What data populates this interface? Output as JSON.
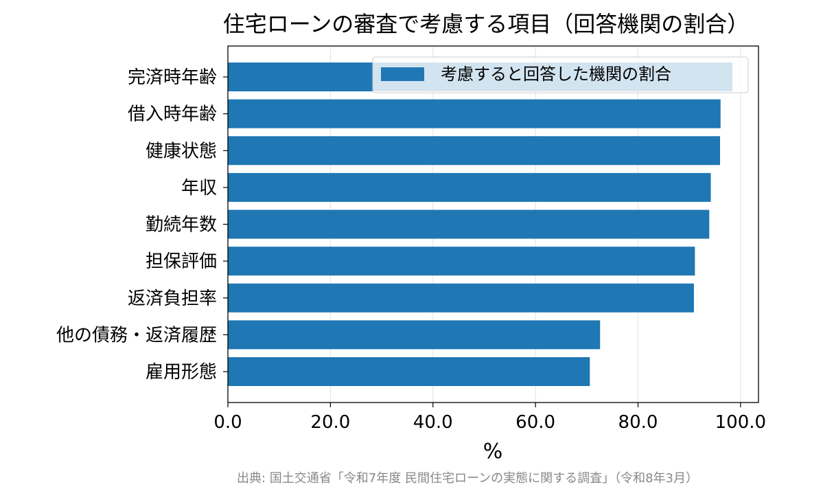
{
  "chart_data": {
    "type": "bar",
    "orientation": "horizontal",
    "title": "住宅ローンの審査で考慮する項目（回答機関の割合）",
    "xlabel": "%",
    "ylabel": "",
    "xlim": [
      0,
      103.5
    ],
    "xticks": [
      0,
      20,
      40,
      60,
      80,
      100
    ],
    "xtick_labels": [
      "0.0",
      "20.0",
      "40.0",
      "60.0",
      "80.0",
      "100.0"
    ],
    "grid": "x",
    "legend_position": "top-right",
    "categories": [
      "完済時年齢",
      "借入時年齢",
      "健康状態",
      "年収",
      "勤続年数",
      "担保評価",
      "返済負担率",
      "他の債務・返済履歴",
      "雇用形態"
    ],
    "series": [
      {
        "name": "考慮すると回答した機関の割合",
        "color": "#1f77b4",
        "values": [
          98.4,
          96.1,
          96.0,
          94.2,
          93.9,
          91.1,
          90.9,
          72.6,
          70.6
        ]
      }
    ],
    "source": "出典: 国土交通省「令和7年度 民間住宅ローンの実態に関する調査」（令和8年3月）"
  }
}
